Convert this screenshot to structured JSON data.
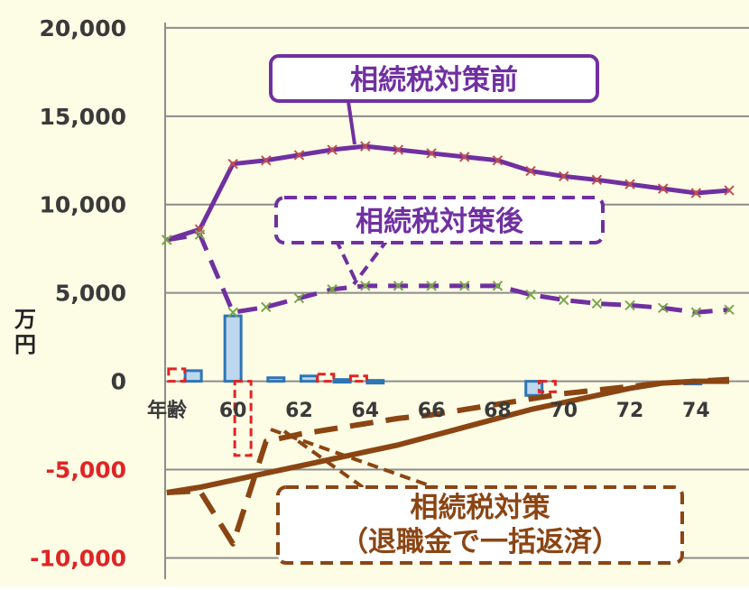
{
  "chart_data": {
    "type": "line",
    "y_unit_label": "万円",
    "x_axis_prefix": "年齢",
    "x": [
      58,
      59,
      60,
      61,
      62,
      63,
      64,
      65,
      66,
      67,
      68,
      69,
      70,
      71,
      72,
      73,
      74,
      75
    ],
    "x_tick_labels": [
      "60",
      "62",
      "64",
      "66",
      "68",
      "70",
      "72",
      "74"
    ],
    "x_tick_values": [
      60,
      62,
      64,
      66,
      68,
      70,
      72,
      74
    ],
    "y_ticks": [
      20000,
      15000,
      10000,
      5000,
      0,
      -5000,
      -10000
    ],
    "y_tick_labels": [
      "20,000",
      "15,000",
      "10,000",
      "5,000",
      "0",
      "-5,000",
      "-10,000"
    ],
    "ylim": [
      -11200,
      20300
    ],
    "xlim": [
      57.95,
      75.6
    ],
    "gridlines": true,
    "series": [
      {
        "name": "相続税対策前",
        "style": "solid-marker",
        "color": "#7030a0",
        "values": [
          8000,
          8600,
          12300,
          12500,
          12800,
          13100,
          13300,
          13100,
          12900,
          12700,
          12500,
          11900,
          11600,
          11400,
          11150,
          10900,
          10650,
          10800
        ]
      },
      {
        "name": "相続税対策後",
        "style": "dashed-marker",
        "color": "#7030a0",
        "values": [
          8000,
          8300,
          3900,
          4200,
          4700,
          5200,
          5400,
          5400,
          5400,
          5400,
          5400,
          4900,
          4600,
          4400,
          4300,
          4150,
          3900,
          4050
        ]
      },
      {
        "name": "",
        "style": "solid-thick",
        "color": "#8b4513",
        "values": [
          -6300,
          -6000,
          -5600,
          -5200,
          -4800,
          -4400,
          -4000,
          -3600,
          -3100,
          -2600,
          -2100,
          -1600,
          -1200,
          -800,
          -400,
          -100,
          0,
          0
        ]
      },
      {
        "name": "",
        "style": "dashed-thick",
        "color": "#8b4513",
        "values": [
          -6300,
          -6200,
          -9200,
          -3400,
          -3000,
          -2700,
          -2400,
          -2100,
          -1900,
          -1600,
          -1300,
          -1000,
          -700,
          -500,
          -300,
          -100,
          0,
          100
        ]
      }
    ],
    "bars": [
      {
        "name": "",
        "style": "solid-blue",
        "color": "#2e75b6",
        "fill": "#bdd7ee",
        "points": [
          [
            58.8,
            600
          ],
          [
            60,
            3700
          ],
          [
            61.3,
            200
          ],
          [
            62.3,
            300
          ],
          [
            63.3,
            100
          ],
          [
            64.3,
            50
          ],
          [
            69.1,
            -800
          ],
          [
            73.9,
            -100
          ]
        ]
      },
      {
        "name": "",
        "style": "dashed-red",
        "color": "#e02424",
        "fill": "none",
        "points": [
          [
            58.3,
            700
          ],
          [
            60.3,
            -4200
          ],
          [
            62.8,
            400
          ],
          [
            63.8,
            300
          ],
          [
            69.5,
            -600
          ]
        ]
      }
    ],
    "callouts": [
      {
        "text": "相続税対策前",
        "color": "#7030a0"
      },
      {
        "text": "相続税対策後",
        "color": "#7030a0"
      },
      {
        "text": "相続税対策",
        "color": "#8b4513"
      },
      {
        "text": "（退職金で一括返済）",
        "color": "#8b4513"
      }
    ],
    "background": "#fdfde6"
  }
}
